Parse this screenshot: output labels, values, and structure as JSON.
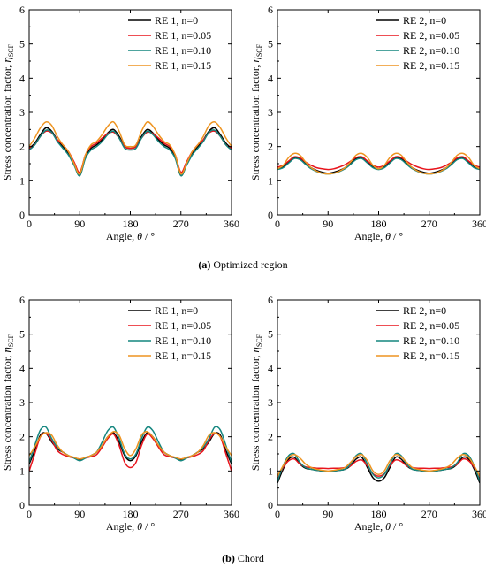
{
  "captions": {
    "a_label": "(a)",
    "a_text": " Optimized region",
    "b_label": "(b)",
    "b_text": " Chord"
  },
  "axis_text": {
    "xlabel_main": "Angle, ",
    "xlabel_symbol": "θ",
    "xlabel_unit": " / °",
    "ylabel_main": "Stress concentration factor, ",
    "ylabel_symbol": "η",
    "ylabel_sub": "SCF"
  },
  "colors": {
    "n0": "#000000",
    "n005": "#e8141c",
    "n010": "#14867f",
    "n015": "#ee9421"
  },
  "chart_data": [
    {
      "id": "a-left",
      "type": "line",
      "xlim": [
        0,
        360
      ],
      "ylim": [
        0,
        6
      ],
      "xticks": [
        0,
        90,
        180,
        270,
        360
      ],
      "yticks": [
        0,
        1,
        2,
        3,
        4,
        5,
        6
      ],
      "legend_position": "top-right",
      "x": [
        0,
        10,
        20,
        30,
        40,
        50,
        60,
        70,
        80,
        90,
        100,
        110,
        120,
        130,
        140,
        150,
        160,
        170,
        180,
        190,
        200,
        210,
        220,
        230,
        240,
        250,
        260,
        270,
        280,
        290,
        300,
        310,
        320,
        330,
        340,
        350,
        360
      ],
      "series": [
        {
          "name": "RE 1, n=0",
          "color": "#000000",
          "values": [
            1.95,
            2.1,
            2.35,
            2.55,
            2.45,
            2.2,
            2.0,
            1.8,
            1.5,
            1.15,
            1.7,
            1.95,
            2.05,
            2.2,
            2.4,
            2.5,
            2.3,
            2.0,
            1.95,
            2.0,
            2.3,
            2.5,
            2.4,
            2.2,
            2.05,
            1.95,
            1.7,
            1.15,
            1.5,
            1.8,
            2.0,
            2.2,
            2.45,
            2.55,
            2.35,
            2.1,
            1.95
          ]
        },
        {
          "name": "RE 1, n=0.05",
          "color": "#e8141c",
          "values": [
            1.95,
            2.05,
            2.3,
            2.45,
            2.4,
            2.2,
            2.05,
            1.85,
            1.55,
            1.25,
            1.75,
            2.0,
            2.1,
            2.25,
            2.38,
            2.42,
            2.25,
            2.0,
            1.95,
            2.0,
            2.25,
            2.42,
            2.38,
            2.25,
            2.1,
            2.0,
            1.75,
            1.25,
            1.55,
            1.85,
            2.05,
            2.2,
            2.4,
            2.45,
            2.3,
            2.05,
            1.95
          ]
        },
        {
          "name": "RE 1, n=0.10",
          "color": "#14867f",
          "values": [
            1.9,
            2.05,
            2.3,
            2.48,
            2.42,
            2.15,
            1.95,
            1.75,
            1.45,
            1.15,
            1.65,
            1.9,
            2.0,
            2.15,
            2.35,
            2.45,
            2.25,
            1.95,
            1.9,
            1.95,
            2.25,
            2.45,
            2.35,
            2.15,
            2.0,
            1.9,
            1.65,
            1.15,
            1.45,
            1.75,
            1.95,
            2.15,
            2.42,
            2.48,
            2.3,
            2.05,
            1.9
          ]
        },
        {
          "name": "RE 1, n=0.15",
          "color": "#ee9421",
          "values": [
            2.0,
            2.25,
            2.55,
            2.72,
            2.62,
            2.3,
            2.05,
            1.85,
            1.5,
            1.2,
            1.75,
            2.05,
            2.15,
            2.35,
            2.6,
            2.72,
            2.45,
            2.05,
            2.0,
            2.05,
            2.45,
            2.72,
            2.6,
            2.35,
            2.15,
            2.05,
            1.75,
            1.2,
            1.5,
            1.85,
            2.05,
            2.3,
            2.62,
            2.72,
            2.55,
            2.25,
            2.0
          ]
        }
      ]
    },
    {
      "id": "a-right",
      "type": "line",
      "xlim": [
        0,
        360
      ],
      "ylim": [
        0,
        6
      ],
      "xticks": [
        0,
        90,
        180,
        270,
        360
      ],
      "yticks": [
        0,
        1,
        2,
        3,
        4,
        5,
        6
      ],
      "legend_position": "top-right",
      "x": [
        0,
        10,
        20,
        30,
        40,
        50,
        60,
        70,
        80,
        90,
        100,
        110,
        120,
        130,
        140,
        150,
        160,
        170,
        180,
        190,
        200,
        210,
        220,
        230,
        240,
        250,
        260,
        270,
        280,
        290,
        300,
        310,
        320,
        330,
        340,
        350,
        360
      ],
      "series": [
        {
          "name": "RE 2, n=0",
          "color": "#000000",
          "values": [
            1.35,
            1.4,
            1.55,
            1.68,
            1.65,
            1.5,
            1.38,
            1.3,
            1.25,
            1.22,
            1.25,
            1.3,
            1.38,
            1.5,
            1.65,
            1.68,
            1.55,
            1.4,
            1.35,
            1.4,
            1.55,
            1.68,
            1.65,
            1.5,
            1.38,
            1.3,
            1.25,
            1.22,
            1.25,
            1.3,
            1.38,
            1.5,
            1.65,
            1.68,
            1.55,
            1.4,
            1.35
          ]
        },
        {
          "name": "RE 2, n=0.05",
          "color": "#e8141c",
          "values": [
            1.4,
            1.45,
            1.58,
            1.7,
            1.67,
            1.55,
            1.45,
            1.38,
            1.35,
            1.33,
            1.35,
            1.4,
            1.47,
            1.57,
            1.68,
            1.7,
            1.58,
            1.45,
            1.4,
            1.45,
            1.58,
            1.7,
            1.68,
            1.57,
            1.47,
            1.4,
            1.35,
            1.33,
            1.35,
            1.38,
            1.45,
            1.55,
            1.67,
            1.7,
            1.58,
            1.45,
            1.4
          ]
        },
        {
          "name": "RE 2, n=0.10",
          "color": "#14867f",
          "values": [
            1.33,
            1.38,
            1.52,
            1.65,
            1.62,
            1.48,
            1.35,
            1.27,
            1.22,
            1.2,
            1.22,
            1.27,
            1.35,
            1.48,
            1.62,
            1.65,
            1.52,
            1.38,
            1.33,
            1.38,
            1.52,
            1.65,
            1.62,
            1.48,
            1.35,
            1.27,
            1.22,
            1.2,
            1.22,
            1.27,
            1.35,
            1.48,
            1.62,
            1.65,
            1.52,
            1.38,
            1.33
          ]
        },
        {
          "name": "RE 2, n=0.15",
          "color": "#ee9421",
          "values": [
            1.35,
            1.45,
            1.68,
            1.8,
            1.75,
            1.55,
            1.38,
            1.28,
            1.22,
            1.2,
            1.22,
            1.28,
            1.38,
            1.55,
            1.75,
            1.8,
            1.68,
            1.45,
            1.35,
            1.45,
            1.68,
            1.8,
            1.75,
            1.55,
            1.38,
            1.28,
            1.22,
            1.2,
            1.22,
            1.28,
            1.38,
            1.55,
            1.75,
            1.8,
            1.68,
            1.45,
            1.35
          ]
        }
      ]
    },
    {
      "id": "b-left",
      "type": "line",
      "xlim": [
        0,
        360
      ],
      "ylim": [
        0,
        6
      ],
      "xticks": [
        0,
        90,
        180,
        270,
        360
      ],
      "yticks": [
        0,
        1,
        2,
        3,
        4,
        5,
        6
      ],
      "legend_position": "top-right",
      "x": [
        0,
        10,
        20,
        30,
        40,
        50,
        60,
        70,
        80,
        90,
        100,
        110,
        120,
        130,
        140,
        150,
        160,
        170,
        180,
        190,
        200,
        210,
        220,
        230,
        240,
        250,
        260,
        270,
        280,
        290,
        300,
        310,
        320,
        330,
        340,
        350,
        360
      ],
      "series": [
        {
          "name": "RE 1, n=0",
          "color": "#000000",
          "values": [
            1.2,
            1.6,
            2.05,
            2.1,
            1.85,
            1.65,
            1.55,
            1.45,
            1.38,
            1.32,
            1.38,
            1.45,
            1.55,
            1.75,
            2.0,
            2.12,
            1.85,
            1.45,
            1.3,
            1.45,
            1.85,
            2.12,
            2.0,
            1.75,
            1.55,
            1.45,
            1.38,
            1.32,
            1.38,
            1.45,
            1.55,
            1.65,
            1.85,
            2.1,
            2.05,
            1.6,
            1.2
          ]
        },
        {
          "name": "RE 1, n=0.05",
          "color": "#e8141c",
          "values": [
            1.0,
            1.5,
            2.0,
            2.1,
            1.9,
            1.6,
            1.48,
            1.42,
            1.38,
            1.35,
            1.38,
            1.42,
            1.48,
            1.7,
            1.95,
            2.08,
            1.75,
            1.25,
            1.1,
            1.25,
            1.75,
            2.08,
            1.95,
            1.7,
            1.48,
            1.42,
            1.38,
            1.35,
            1.38,
            1.42,
            1.48,
            1.6,
            1.9,
            2.1,
            2.0,
            1.5,
            1.0
          ]
        },
        {
          "name": "RE 1, n=0.10",
          "color": "#14867f",
          "values": [
            1.25,
            1.75,
            2.2,
            2.28,
            1.95,
            1.7,
            1.55,
            1.45,
            1.38,
            1.3,
            1.38,
            1.45,
            1.55,
            1.85,
            2.18,
            2.28,
            1.95,
            1.5,
            1.35,
            1.5,
            1.95,
            2.28,
            2.18,
            1.85,
            1.55,
            1.45,
            1.38,
            1.3,
            1.38,
            1.45,
            1.55,
            1.7,
            1.95,
            2.28,
            2.2,
            1.75,
            1.25
          ]
        },
        {
          "name": "RE 1, n=0.15",
          "color": "#ee9421",
          "values": [
            1.45,
            1.7,
            2.0,
            2.12,
            2.05,
            1.75,
            1.55,
            1.45,
            1.4,
            1.35,
            1.4,
            1.45,
            1.55,
            1.75,
            2.0,
            2.15,
            2.05,
            1.65,
            1.45,
            1.65,
            2.05,
            2.15,
            2.0,
            1.75,
            1.55,
            1.45,
            1.4,
            1.35,
            1.4,
            1.45,
            1.55,
            1.75,
            2.05,
            2.12,
            2.0,
            1.7,
            1.45
          ]
        }
      ]
    },
    {
      "id": "b-right",
      "type": "line",
      "xlim": [
        0,
        360
      ],
      "ylim": [
        0,
        6
      ],
      "xticks": [
        0,
        90,
        180,
        270,
        360
      ],
      "yticks": [
        0,
        1,
        2,
        3,
        4,
        5,
        6
      ],
      "legend_position": "top-right",
      "x": [
        0,
        10,
        20,
        30,
        40,
        50,
        60,
        70,
        80,
        90,
        100,
        110,
        120,
        130,
        140,
        150,
        160,
        170,
        180,
        190,
        200,
        210,
        220,
        230,
        240,
        250,
        260,
        270,
        280,
        290,
        300,
        310,
        320,
        330,
        340,
        350,
        360
      ],
      "series": [
        {
          "name": "RE 2, n=0",
          "color": "#000000",
          "values": [
            0.65,
            1.05,
            1.35,
            1.4,
            1.2,
            1.08,
            1.05,
            1.02,
            1.0,
            0.98,
            1.0,
            1.02,
            1.05,
            1.15,
            1.35,
            1.4,
            1.1,
            0.8,
            0.7,
            0.8,
            1.1,
            1.4,
            1.35,
            1.15,
            1.05,
            1.02,
            1.0,
            0.98,
            1.0,
            1.02,
            1.05,
            1.08,
            1.2,
            1.4,
            1.35,
            1.05,
            0.65
          ]
        },
        {
          "name": "RE 2, n=0.05",
          "color": "#e8141c",
          "values": [
            0.75,
            1.1,
            1.3,
            1.35,
            1.2,
            1.12,
            1.1,
            1.08,
            1.08,
            1.07,
            1.08,
            1.08,
            1.1,
            1.15,
            1.28,
            1.32,
            1.15,
            0.92,
            0.85,
            0.92,
            1.15,
            1.32,
            1.28,
            1.15,
            1.1,
            1.08,
            1.08,
            1.07,
            1.08,
            1.08,
            1.1,
            1.12,
            1.2,
            1.35,
            1.3,
            1.1,
            0.75
          ]
        },
        {
          "name": "RE 2, n=0.10",
          "color": "#14867f",
          "values": [
            0.7,
            1.15,
            1.45,
            1.5,
            1.25,
            1.1,
            1.05,
            1.02,
            1.0,
            0.98,
            1.0,
            1.02,
            1.05,
            1.2,
            1.45,
            1.5,
            1.2,
            0.9,
            0.8,
            0.9,
            1.2,
            1.5,
            1.45,
            1.2,
            1.05,
            1.02,
            1.0,
            0.98,
            1.0,
            1.02,
            1.05,
            1.1,
            1.25,
            1.5,
            1.45,
            1.15,
            0.7
          ]
        },
        {
          "name": "RE 2, n=0.15",
          "color": "#ee9421",
          "values": [
            0.85,
            1.15,
            1.4,
            1.48,
            1.38,
            1.2,
            1.1,
            1.05,
            1.02,
            1.0,
            1.02,
            1.05,
            1.1,
            1.25,
            1.42,
            1.48,
            1.3,
            1.0,
            0.9,
            1.0,
            1.3,
            1.48,
            1.42,
            1.25,
            1.1,
            1.05,
            1.02,
            1.0,
            1.02,
            1.05,
            1.1,
            1.2,
            1.38,
            1.48,
            1.4,
            1.15,
            0.85
          ]
        }
      ]
    }
  ]
}
